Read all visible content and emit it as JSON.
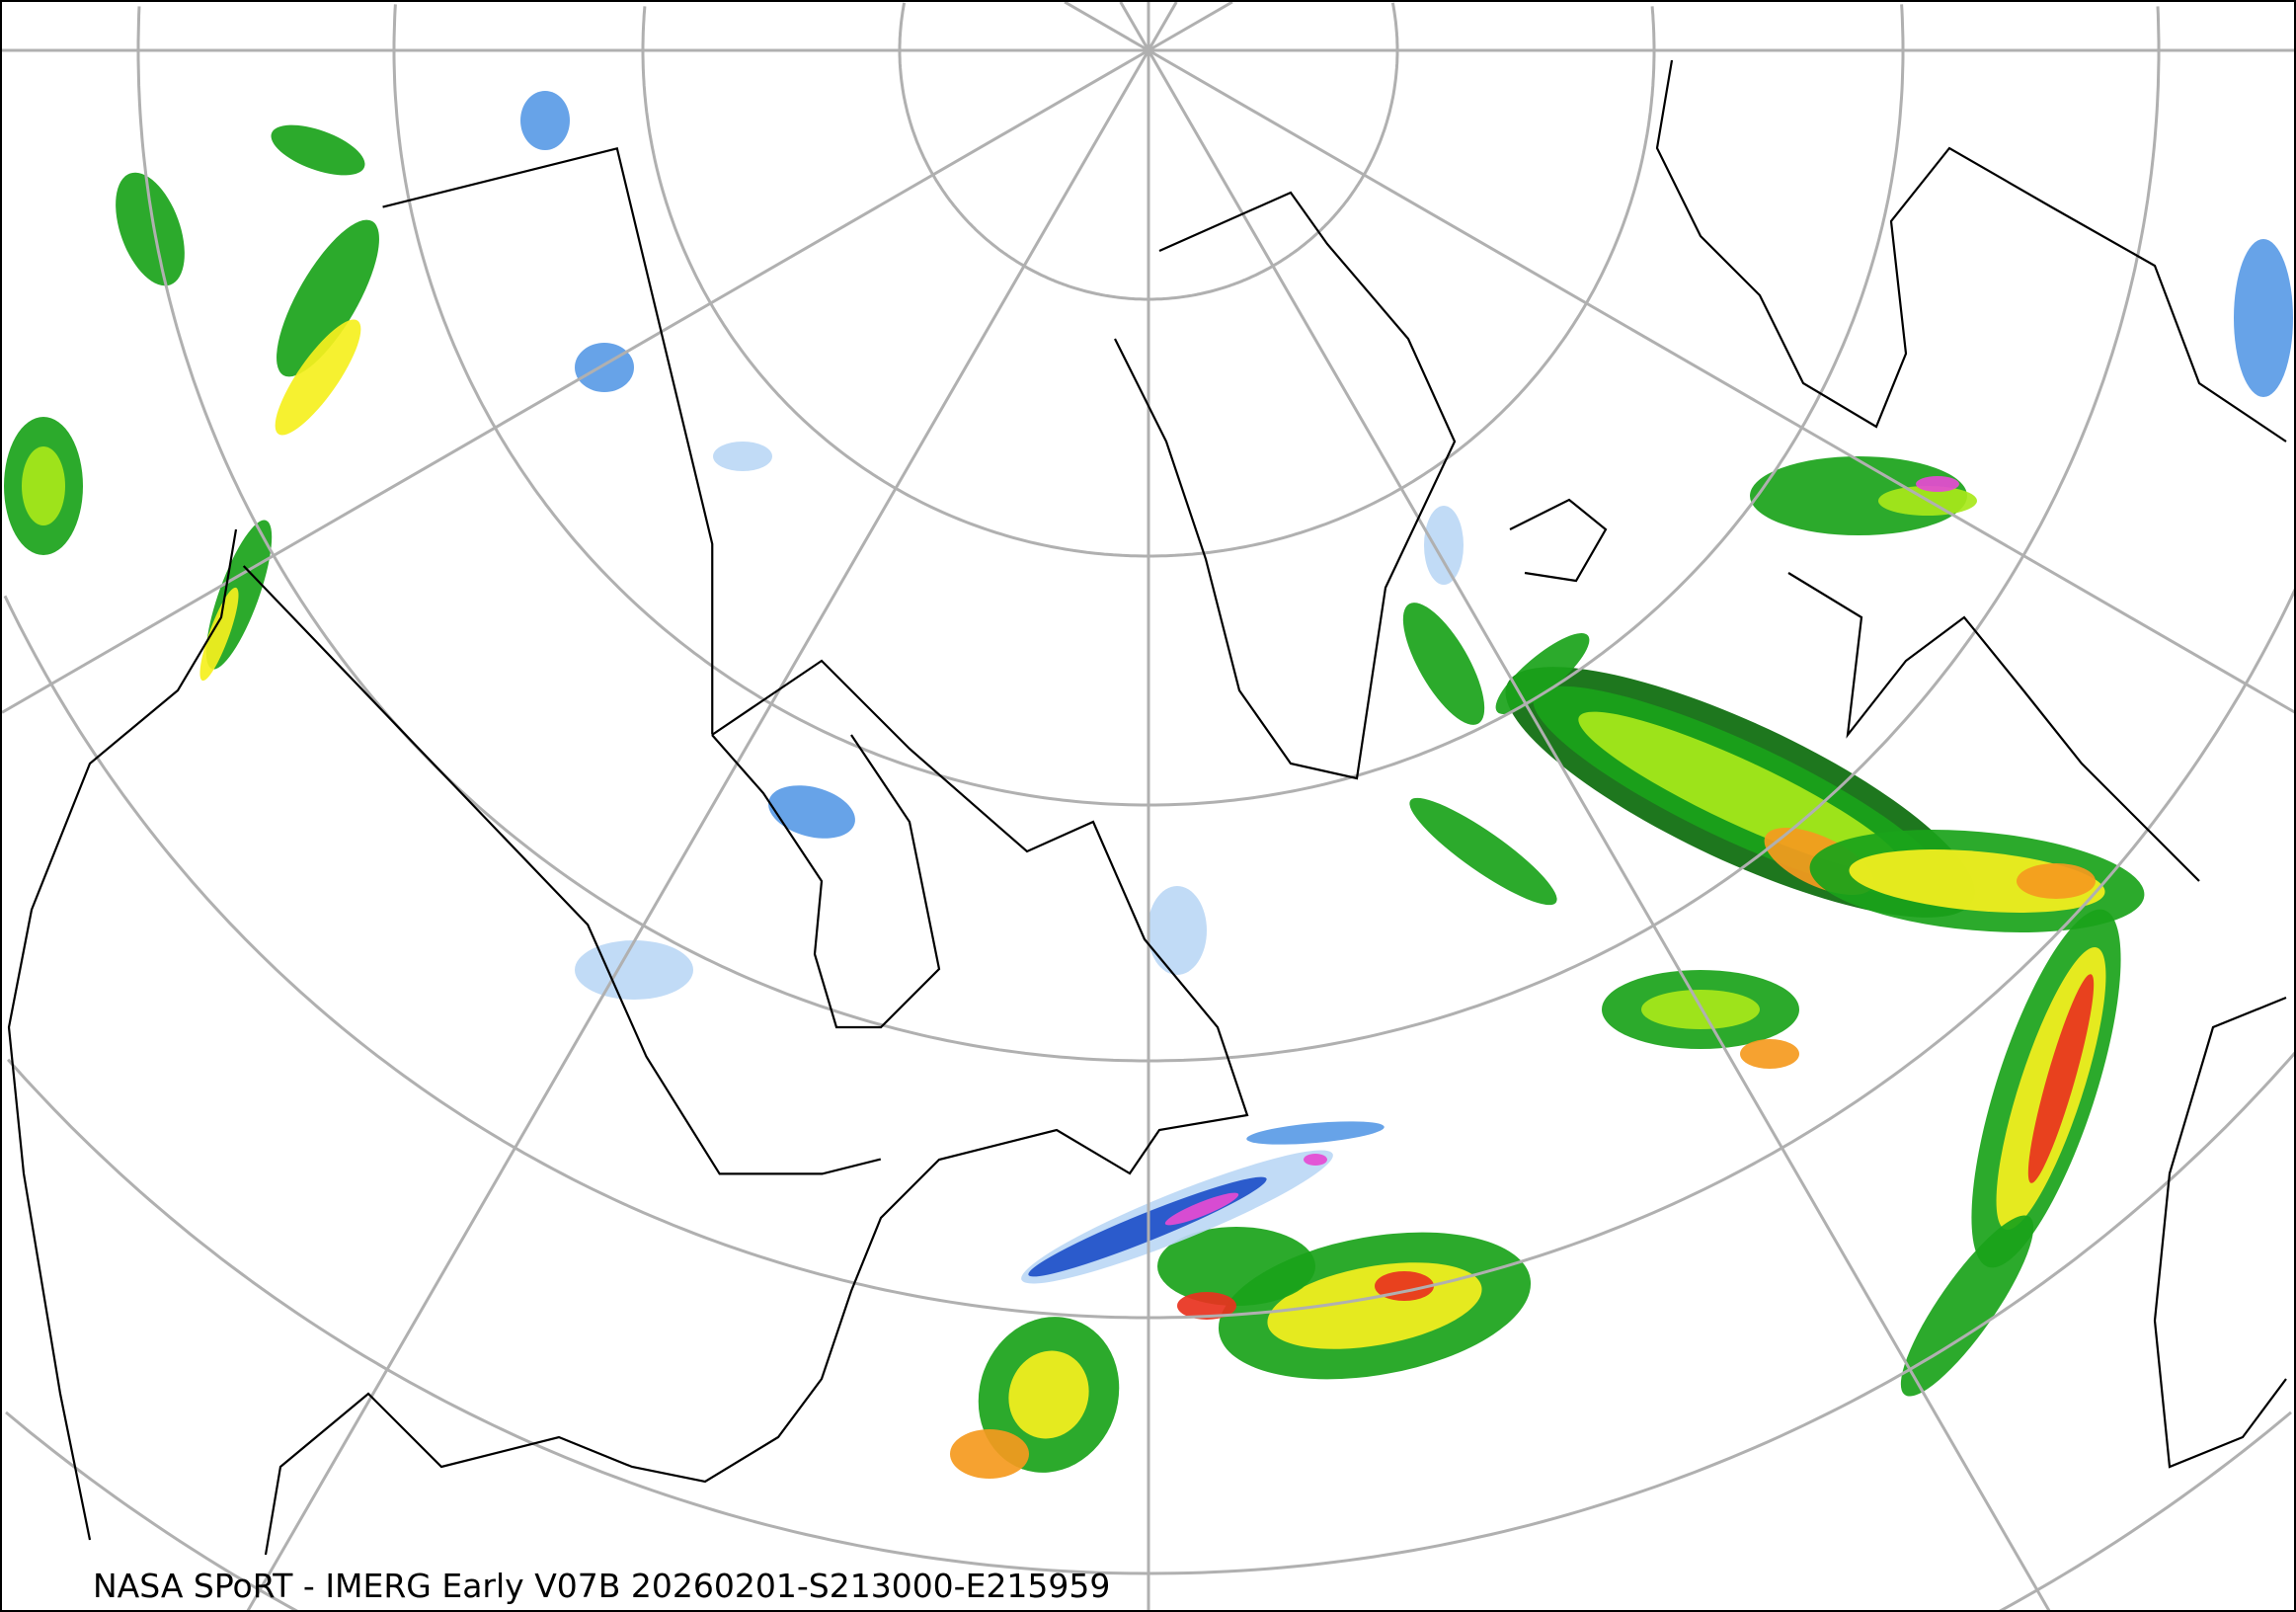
{
  "caption": "NASA SPoRT - IMERG Early V07B 20260201-S213000-E215959",
  "colors": {
    "graticule": "#b0b0b0",
    "coastline": "#000000",
    "rain_light": "#1aa31a",
    "rain_dark": "#0b6b0b",
    "rain_moderate": "#a8e81a",
    "rain_yellow": "#f5f01e",
    "rain_orange": "#f59a1e",
    "rain_heavy": "#e8321e",
    "snow_light": "#bcd8f5",
    "snow_moderate": "#5a9be6",
    "snow_heavy": "#1e50c8",
    "mixed": "#e64bd2"
  },
  "projection": "polar stereographic"
}
